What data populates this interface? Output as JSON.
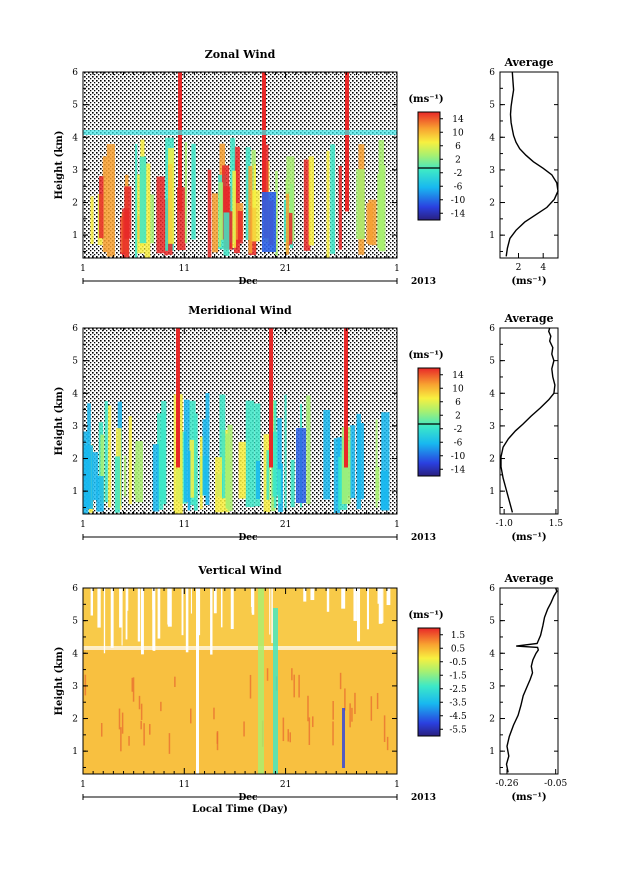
{
  "chart_data": [
    {
      "type": "heatmap",
      "title": "Zonal Wind",
      "ylabel": "Height (km)",
      "xticks": [
        "1",
        "11",
        "21",
        "1"
      ],
      "month_label": "Dec",
      "year_label": "2013",
      "yticks": [
        "1",
        "2",
        "3",
        "4",
        "5",
        "6"
      ],
      "ylim": [
        0.3,
        6
      ],
      "colorbar": {
        "unit": "(ms⁻¹)",
        "ticks": [
          "14",
          "10",
          "6",
          "2",
          "-2",
          "-6",
          "-10",
          "-14"
        ],
        "range": [
          -16,
          16
        ]
      }
    },
    {
      "type": "line",
      "title": "Average",
      "xlabel": "(ms⁻¹)",
      "xticks": [
        "2",
        "4"
      ],
      "xlim": [
        0.5,
        5.2
      ],
      "yticks": [
        "1",
        "2",
        "3",
        "4",
        "5",
        "6"
      ],
      "ylim": [
        0.3,
        6
      ],
      "series": [
        {
          "x": [
            1.0,
            1.1,
            1.3,
            1.8,
            2.5,
            3.5,
            4.3,
            4.9,
            5.2,
            5.1,
            4.7,
            4.0,
            3.2,
            2.6,
            2.1,
            1.8,
            1.6,
            1.5,
            1.4,
            1.35,
            1.4,
            1.5,
            1.6,
            1.55,
            1.5
          ],
          "y": [
            0.35,
            0.6,
            0.9,
            1.15,
            1.4,
            1.65,
            1.85,
            2.1,
            2.35,
            2.6,
            2.85,
            3.05,
            3.25,
            3.45,
            3.65,
            3.85,
            4.05,
            4.25,
            4.45,
            4.7,
            4.95,
            5.2,
            5.45,
            5.7,
            6.0
          ]
        }
      ]
    },
    {
      "type": "heatmap",
      "title": "Meridional Wind",
      "ylabel": "Height (km)",
      "xticks": [
        "1",
        "11",
        "21",
        "1"
      ],
      "month_label": "Dec",
      "year_label": "2013",
      "yticks": [
        "1",
        "2",
        "3",
        "4",
        "5",
        "6"
      ],
      "ylim": [
        0.3,
        6
      ],
      "colorbar": {
        "unit": "(ms⁻¹)",
        "ticks": [
          "14",
          "10",
          "6",
          "2",
          "-2",
          "-6",
          "-10",
          "-14"
        ],
        "range": [
          -16,
          16
        ]
      }
    },
    {
      "type": "line",
      "title": "Average",
      "xlabel": "(ms⁻¹)",
      "xticks": [
        "-1.0",
        "1.5"
      ],
      "xlim": [
        -1.2,
        1.6
      ],
      "yticks": [
        "1",
        "2",
        "3",
        "4",
        "5",
        "6"
      ],
      "ylim": [
        0.3,
        6
      ],
      "series": [
        {
          "x": [
            -0.6,
            -0.75,
            -0.9,
            -1.05,
            -1.15,
            -1.15,
            -1.05,
            -0.8,
            -0.45,
            -0.1,
            0.3,
            0.75,
            1.15,
            1.4,
            1.45,
            1.35,
            1.3,
            1.4,
            1.3,
            1.35,
            1.2,
            1.25,
            1.15,
            1.2
          ],
          "y": [
            0.35,
            0.7,
            1.05,
            1.4,
            1.75,
            2.05,
            2.35,
            2.6,
            2.85,
            3.05,
            3.3,
            3.55,
            3.8,
            4.0,
            4.25,
            4.5,
            4.75,
            5.0,
            5.2,
            5.4,
            5.6,
            5.75,
            5.9,
            6.0
          ]
        }
      ]
    },
    {
      "type": "heatmap",
      "title": "Vertical Wind",
      "ylabel": "Height (km)",
      "xlabel": "Local Time (Day)",
      "xticks": [
        "1",
        "11",
        "21",
        "1"
      ],
      "month_label": "Dec",
      "year_label": "2013",
      "yticks": [
        "1",
        "2",
        "3",
        "4",
        "5",
        "6"
      ],
      "ylim": [
        0.3,
        6
      ],
      "colorbar": {
        "unit": "(ms⁻¹)",
        "ticks": [
          "1.5",
          "0.5",
          "-0.5",
          "-1.5",
          "-2.5",
          "-3.5",
          "-4.5",
          "-5.5"
        ],
        "range": [
          -6,
          2
        ]
      }
    },
    {
      "type": "line",
      "title": "Average",
      "xlabel": "(ms⁻¹)",
      "xticks": [
        "-0.26",
        "-0.05"
      ],
      "xlim": [
        -0.29,
        -0.04
      ],
      "yticks": [
        "1",
        "2",
        "3",
        "4",
        "5",
        "6"
      ],
      "ylim": [
        0.3,
        6
      ],
      "series": [
        {
          "x": [
            -0.255,
            -0.262,
            -0.252,
            -0.26,
            -0.25,
            -0.232,
            -0.212,
            -0.2,
            -0.19,
            -0.172,
            -0.16,
            -0.15,
            -0.155,
            -0.148,
            -0.135,
            -0.125,
            -0.128,
            -0.22,
            -0.13,
            -0.115,
            -0.105,
            -0.098,
            -0.085,
            -0.07,
            -0.058,
            -0.045,
            -0.05
          ],
          "y": [
            0.35,
            0.6,
            0.85,
            1.15,
            1.45,
            1.8,
            2.1,
            2.4,
            2.7,
            3.0,
            3.2,
            3.4,
            3.6,
            3.8,
            4.0,
            4.1,
            4.18,
            4.22,
            4.3,
            4.55,
            4.85,
            5.1,
            5.35,
            5.55,
            5.75,
            5.9,
            6.0
          ]
        }
      ]
    }
  ]
}
